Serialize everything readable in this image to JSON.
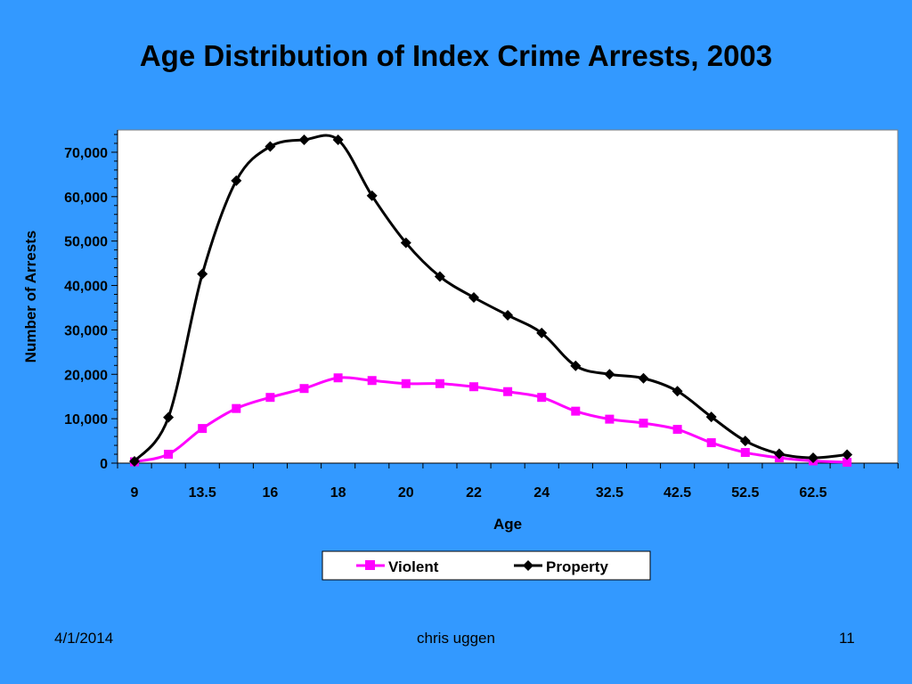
{
  "colors": {
    "background": "#3399FF",
    "plot_bg": "#FFFFFF",
    "violent": "#FF00FF",
    "property": "#000000"
  },
  "chart_data": {
    "type": "line",
    "title": "Age Distribution of Index Crime Arrests, 2003",
    "xlabel": "Age",
    "ylabel": "Number of Arrests",
    "x_tick_labels": [
      "9",
      "13.5",
      "16",
      "18",
      "20",
      "22",
      "24",
      "32.5",
      "42.5",
      "52.5",
      "62.5"
    ],
    "y_ticks": [
      0,
      10000,
      20000,
      30000,
      40000,
      50000,
      60000,
      70000
    ],
    "y_tick_labels": [
      "0",
      "10,000",
      "20,000",
      "30,000",
      "40,000",
      "50,000",
      "60,000",
      "70,000"
    ],
    "ylim": [
      0,
      75000
    ],
    "grid": false,
    "legend_position": "bottom",
    "series": [
      {
        "name": "Violent",
        "color": "#FF00FF",
        "marker": "square",
        "values": [
          300,
          2000,
          7800,
          12300,
          14800,
          16800,
          19200,
          18600,
          17900,
          17900,
          17200,
          16100,
          14800,
          11700,
          9900,
          9000,
          7600,
          4600,
          2400,
          1200,
          500,
          200
        ]
      },
      {
        "name": "Property",
        "color": "#000000",
        "marker": "diamond",
        "values": [
          400,
          10300,
          42600,
          63600,
          71300,
          72800,
          72800,
          60200,
          49600,
          42000,
          37300,
          33300,
          29300,
          21900,
          20000,
          19100,
          16200,
          10400,
          5000,
          2100,
          1200,
          1900
        ]
      }
    ]
  },
  "footer": {
    "date": "4/1/2014",
    "author": "chris uggen",
    "page": "11"
  }
}
